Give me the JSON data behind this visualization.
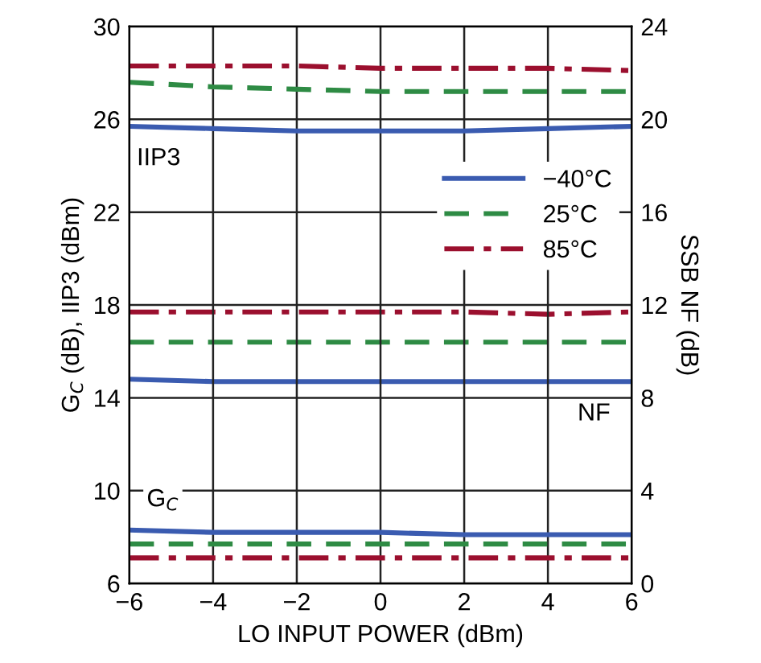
{
  "chart_data": {
    "type": "line",
    "xlabel": "LO INPUT POWER (dBm)",
    "ylabel": "G$_{C}$ (dB), IIP3 (dBm)",
    "y2label": "SSB NF (dB)",
    "x": [
      -6,
      -4,
      -2,
      0,
      2,
      4,
      6
    ],
    "xlim": [
      -6,
      6
    ],
    "xticks": [
      {
        "value": -6,
        "label": "−6"
      },
      {
        "value": -4,
        "label": "−4"
      },
      {
        "value": -2,
        "label": "−2"
      },
      0,
      2,
      4,
      6
    ],
    "ylim": [
      6,
      30
    ],
    "yticks": [
      6,
      10,
      14,
      18,
      22,
      26,
      30
    ],
    "y2lim": [
      0,
      24
    ],
    "y2ticks": [
      0,
      4,
      8,
      12,
      16,
      20,
      24
    ],
    "grid": true,
    "legend": "right",
    "marker": "none",
    "series": [
      {
        "name": "−40°C",
        "color": "#3a5bb0",
        "line_style": "solid",
        "values": [
          25.7,
          25.6,
          25.5,
          25.5,
          25.5,
          25.6,
          25.7
        ]
      },
      {
        "name": "25°C",
        "color": "#2e8b44",
        "line_style": "dashed",
        "values": [
          27.6,
          27.4,
          27.3,
          27.2,
          27.2,
          27.2,
          27.2
        ]
      },
      {
        "name": "85°C",
        "color": "#9b0f2e",
        "line_style": "dashdot",
        "values": [
          28.3,
          28.3,
          28.3,
          28.2,
          28.2,
          28.2,
          28.1
        ]
      },
      {
        "color": "#3a5bb0",
        "line_style": "solid",
        "axis": "y2",
        "values": [
          8.8,
          8.7,
          8.7,
          8.7,
          8.7,
          8.7,
          8.7
        ]
      },
      {
        "color": "#2e8b44",
        "line_style": "dashed",
        "axis": "y2",
        "values": [
          10.4,
          10.4,
          10.4,
          10.4,
          10.4,
          10.4,
          10.4
        ]
      },
      {
        "color": "#9b0f2e",
        "line_style": "dashdot",
        "axis": "y2",
        "values": [
          11.7,
          11.7,
          11.7,
          11.7,
          11.7,
          11.6,
          11.7
        ]
      },
      {
        "color": "#3a5bb0",
        "line_style": "solid",
        "values": [
          8.3,
          8.2,
          8.2,
          8.2,
          8.1,
          8.1,
          8.1
        ]
      },
      {
        "color": "#2e8b44",
        "line_style": "dashed",
        "values": [
          7.7,
          7.7,
          7.7,
          7.7,
          7.7,
          7.7,
          7.7
        ]
      },
      {
        "color": "#9b0f2e",
        "line_style": "dashdot",
        "values": [
          7.1,
          7.1,
          7.1,
          7.1,
          7.1,
          7.1,
          7.1
        ]
      }
    ],
    "annotations": [
      {
        "text": "IIP3",
        "x": -5.3,
        "y": 24.3
      },
      {
        "text": "NF",
        "x": 5.1,
        "y": 13.3
      },
      {
        "text": "G$_{C}$",
        "x": -5.2,
        "y": 9.6
      }
    ]
  }
}
